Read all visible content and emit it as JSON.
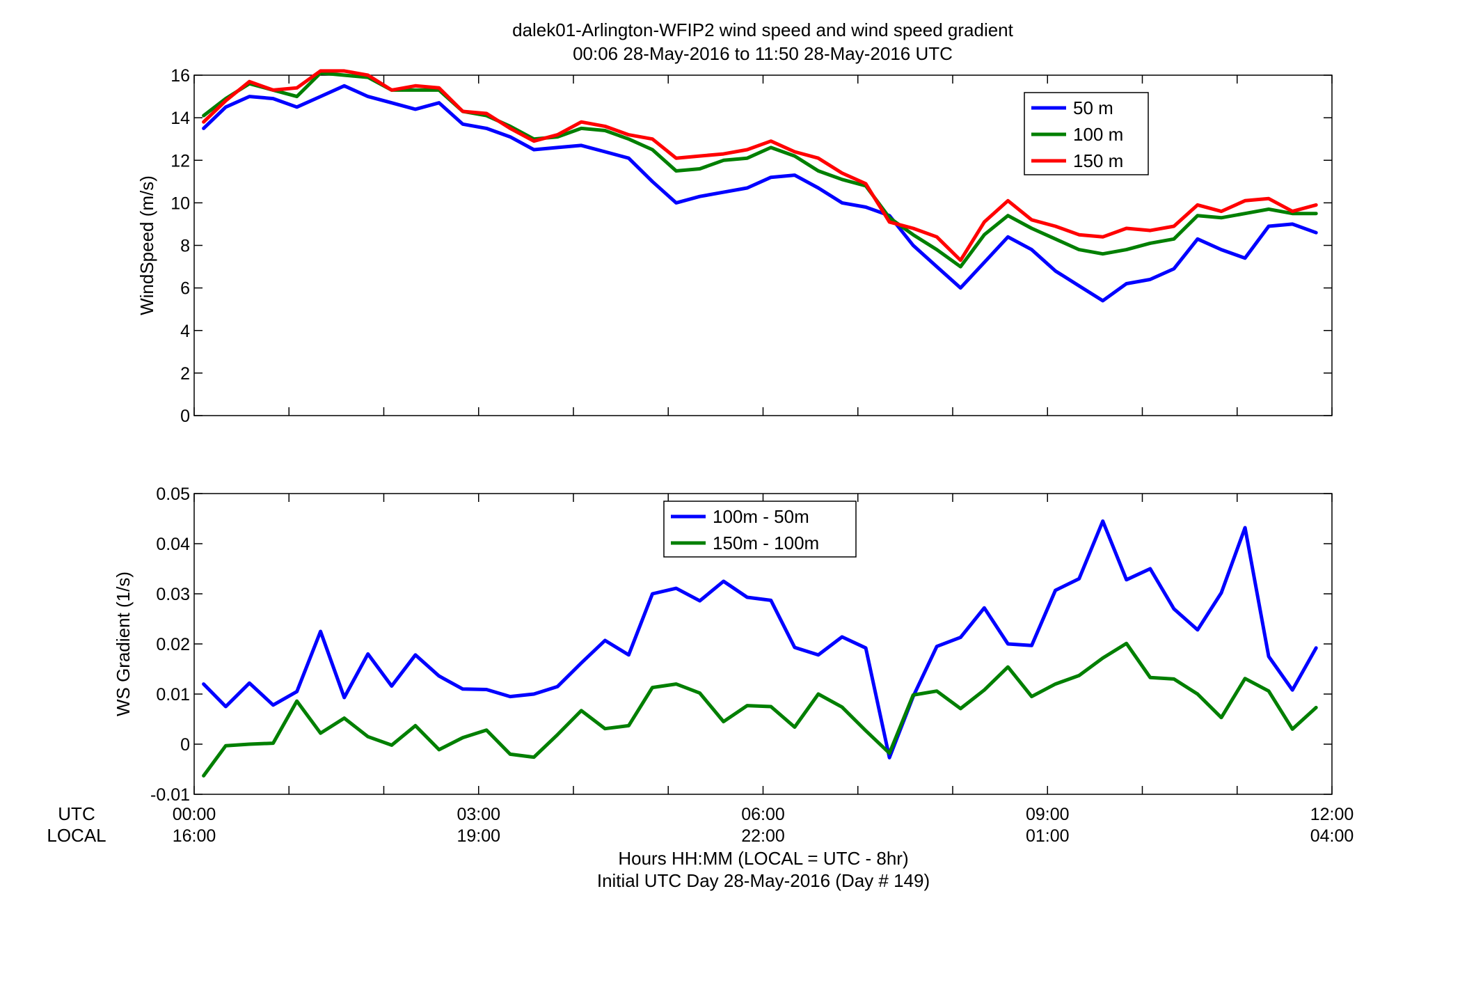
{
  "header": {
    "title": "dalek01-Arlington-WFIP2  wind speed and wind speed gradient",
    "subtitle": "00:06 28-May-2016 to 11:50 28-May-2016  UTC"
  },
  "footer": {
    "utc_label": "UTC",
    "local_label": "LOCAL",
    "xlabel_line1": "Hours HH:MM  (LOCAL = UTC - 8hr)",
    "xlabel_line2": "Initial UTC Day 28-May-2016 (Day # 149)"
  },
  "chart_data": [
    {
      "type": "line",
      "ylabel": "WindSpeed (m/s)",
      "xlim": [
        0,
        12
      ],
      "ylim": [
        0,
        16
      ],
      "yticks": [
        0,
        2,
        4,
        6,
        8,
        10,
        12,
        14,
        16
      ],
      "yticklabels": [
        "0",
        "2",
        "4",
        "6",
        "8",
        "10",
        "12",
        "14",
        "16"
      ],
      "grid": false,
      "legend_position": "top-right",
      "x": [
        0.1,
        0.333,
        0.583,
        0.833,
        1.083,
        1.333,
        1.583,
        1.833,
        2.083,
        2.333,
        2.583,
        2.833,
        3.083,
        3.333,
        3.583,
        3.833,
        4.083,
        4.333,
        4.583,
        4.833,
        5.083,
        5.333,
        5.583,
        5.833,
        6.083,
        6.333,
        6.583,
        6.833,
        7.083,
        7.333,
        7.583,
        7.833,
        8.083,
        8.333,
        8.583,
        8.833,
        9.083,
        9.333,
        9.583,
        9.833,
        10.083,
        10.333,
        10.583,
        10.833,
        11.083,
        11.333,
        11.583,
        11.833
      ],
      "series": [
        {
          "name": "50 m",
          "color": "#0000ff",
          "values": [
            13.5,
            14.5,
            15.0,
            14.9,
            14.5,
            15.0,
            15.5,
            15.0,
            14.7,
            14.4,
            14.7,
            13.7,
            13.5,
            13.1,
            12.5,
            12.6,
            12.7,
            12.4,
            12.1,
            11.0,
            10.0,
            10.3,
            10.5,
            10.7,
            11.2,
            11.3,
            10.7,
            10.0,
            9.8,
            9.4,
            8.0,
            7.0,
            6.0,
            7.2,
            8.4,
            7.8,
            6.8,
            6.1,
            5.4,
            6.2,
            6.4,
            6.9,
            8.3,
            7.8,
            7.4,
            8.9,
            9.0,
            8.6
          ]
        },
        {
          "name": "100 m",
          "color": "#007f00",
          "values": [
            14.1,
            14.9,
            15.6,
            15.3,
            15.0,
            16.1,
            16.0,
            15.9,
            15.3,
            15.3,
            15.3,
            14.3,
            14.1,
            13.6,
            13.0,
            13.1,
            13.5,
            13.4,
            13.0,
            12.5,
            11.5,
            11.6,
            12.0,
            12.1,
            12.6,
            12.2,
            11.5,
            11.1,
            10.8,
            9.3,
            8.5,
            7.8,
            7.0,
            8.5,
            9.4,
            8.8,
            8.3,
            7.8,
            7.6,
            7.8,
            8.1,
            8.3,
            9.4,
            9.3,
            9.5,
            9.7,
            9.5,
            9.5
          ]
        },
        {
          "name": "150 m",
          "color": "#ff0000",
          "values": [
            13.8,
            14.8,
            15.7,
            15.3,
            15.4,
            16.2,
            16.2,
            16.0,
            15.3,
            15.5,
            15.4,
            14.3,
            14.2,
            13.5,
            12.9,
            13.2,
            13.8,
            13.6,
            13.2,
            13.0,
            12.1,
            12.2,
            12.3,
            12.5,
            12.9,
            12.4,
            12.1,
            11.4,
            10.9,
            9.1,
            8.8,
            8.4,
            7.3,
            9.1,
            10.1,
            9.2,
            8.9,
            8.5,
            8.4,
            8.8,
            8.7,
            8.9,
            9.9,
            9.6,
            10.1,
            10.2,
            9.6,
            9.9
          ]
        }
      ]
    },
    {
      "type": "line",
      "ylabel": "WS Gradient (1/s)",
      "xlim": [
        0,
        12
      ],
      "ylim": [
        -0.01,
        0.05
      ],
      "yticks": [
        -0.01,
        0,
        0.01,
        0.02,
        0.03,
        0.04,
        0.05
      ],
      "yticklabels": [
        "-0.01",
        "0",
        "0.01",
        "0.02",
        "0.03",
        "0.04",
        "0.05"
      ],
      "xticks": [
        0,
        3,
        6,
        9,
        12
      ],
      "xticklabels_utc": [
        "00:00",
        "03:00",
        "06:00",
        "09:00",
        "12:00"
      ],
      "xticklabels_local": [
        "16:00",
        "19:00",
        "22:00",
        "01:00",
        "04:00"
      ],
      "grid": false,
      "legend_position": "top-center",
      "x": [
        0.1,
        0.333,
        0.583,
        0.833,
        1.083,
        1.333,
        1.583,
        1.833,
        2.083,
        2.333,
        2.583,
        2.833,
        3.083,
        3.333,
        3.583,
        3.833,
        4.083,
        4.333,
        4.583,
        4.833,
        5.083,
        5.333,
        5.583,
        5.833,
        6.083,
        6.333,
        6.583,
        6.833,
        7.083,
        7.333,
        7.583,
        7.833,
        8.083,
        8.333,
        8.583,
        8.833,
        9.083,
        9.333,
        9.583,
        9.833,
        10.083,
        10.333,
        10.583,
        10.833,
        11.083,
        11.333,
        11.583,
        11.833
      ],
      "series": [
        {
          "name": "100m - 50m",
          "color": "#0000ff",
          "values": [
            0.012,
            0.0075,
            0.0122,
            0.0078,
            0.0105,
            0.0225,
            0.0093,
            0.018,
            0.0116,
            0.0178,
            0.0136,
            0.011,
            0.0109,
            0.0095,
            0.01,
            0.0115,
            0.0162,
            0.0207,
            0.0178,
            0.03,
            0.0311,
            0.0286,
            0.0325,
            0.0293,
            0.0287,
            0.0193,
            0.0178,
            0.0214,
            0.0192,
            -0.0027,
            0.0095,
            0.0195,
            0.0213,
            0.0272,
            0.02,
            0.0197,
            0.0307,
            0.033,
            0.0445,
            0.0328,
            0.035,
            0.027,
            0.0228,
            0.0302,
            0.0432,
            0.0175,
            0.0108,
            0.0192
          ]
        },
        {
          "name": "150m - 100m",
          "color": "#007f00",
          "values": [
            -0.0063,
            -0.0003,
            0.0,
            0.0002,
            0.0086,
            0.0022,
            0.0052,
            0.0015,
            -0.0002,
            0.0037,
            -0.0011,
            0.0013,
            0.0028,
            -0.002,
            -0.0026,
            0.0019,
            0.0067,
            0.0031,
            0.0037,
            0.0113,
            0.012,
            0.0102,
            0.0045,
            0.0077,
            0.0075,
            0.0034,
            0.01,
            0.0074,
            0.0027,
            -0.0018,
            0.0098,
            0.0106,
            0.0071,
            0.0108,
            0.0154,
            0.0095,
            0.012,
            0.0137,
            0.0172,
            0.0201,
            0.0133,
            0.013,
            0.01,
            0.0053,
            0.0131,
            0.0106,
            0.003,
            0.0073
          ]
        }
      ]
    }
  ]
}
